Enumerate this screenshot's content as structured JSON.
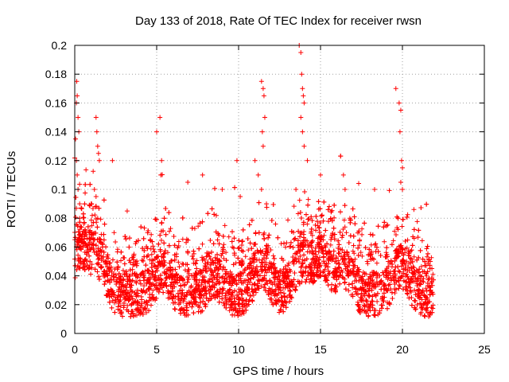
{
  "chart_data": {
    "type": "scatter",
    "title": "Day 133 of 2018, Rate Of TEC Index for receiver rwsn",
    "xlabel": "GPS time / hours",
    "ylabel": "ROTI / TECUs",
    "xlim": [
      0,
      25
    ],
    "ylim": [
      0,
      0.2
    ],
    "x_ticks": [
      0,
      5,
      10,
      15,
      20,
      25
    ],
    "y_ticks": [
      0,
      0.02,
      0.04,
      0.06,
      0.08,
      0.1,
      0.12,
      0.14,
      0.16,
      0.18,
      0.2
    ],
    "x_tick_labels": [
      "0",
      "5",
      "10",
      "15",
      "20",
      "25"
    ],
    "y_tick_labels": [
      "0",
      "0.02",
      "0.04",
      "0.06",
      "0.08",
      "0.1",
      "0.12",
      "0.14",
      "0.16",
      "0.18",
      "0.2"
    ],
    "grid": true,
    "marker": "plus",
    "color": "#ff0000",
    "data_range_x": [
      0,
      21.9
    ],
    "series": [
      {
        "x": [
          0.05,
          0.1,
          0.12,
          0.15,
          0.2,
          0.25,
          0.1,
          0.15,
          0.2,
          0.3,
          0.3,
          0.4,
          0.5,
          0.6,
          0.8,
          1.0,
          1.2,
          1.3,
          1.35,
          1.4,
          1.45,
          1.5,
          1.3,
          1.4,
          2.3,
          2.4,
          3.2,
          5.0,
          5.2,
          5.3,
          5.25,
          6.9,
          7.8,
          9.0,
          9.9,
          10.1,
          11.0,
          11.4,
          11.5,
          11.55,
          11.6,
          11.45,
          11.5,
          11.2,
          11.4,
          11.7,
          13.5,
          13.7,
          13.8,
          13.85,
          13.9,
          13.95,
          14.0,
          13.8,
          13.9,
          14.0,
          14.2,
          15.0,
          16.4,
          16.5,
          18.3,
          19.6,
          19.8,
          19.9,
          19.85,
          19.95,
          20.0,
          19.9,
          20.0,
          21.7,
          21.8
        ],
        "y": [
          0.135,
          0.16,
          0.175,
          0.165,
          0.15,
          0.14,
          0.12,
          0.11,
          0.1,
          0.09,
          0.08,
          0.065,
          0.06,
          0.05,
          0.058,
          0.09,
          0.1,
          0.15,
          0.14,
          0.13,
          0.125,
          0.12,
          0.095,
          0.08,
          0.12,
          0.07,
          0.085,
          0.14,
          0.15,
          0.12,
          0.11,
          0.105,
          0.11,
          0.1,
          0.12,
          0.095,
          0.12,
          0.175,
          0.17,
          0.165,
          0.15,
          0.14,
          0.13,
          0.11,
          0.1,
          0.09,
          0.1,
          0.2,
          0.195,
          0.18,
          0.17,
          0.165,
          0.16,
          0.15,
          0.14,
          0.13,
          0.12,
          0.11,
          0.11,
          0.1,
          0.1,
          0.17,
          0.16,
          0.155,
          0.14,
          0.12,
          0.115,
          0.105,
          0.1,
          0.05,
          0.045
        ]
      }
    ]
  }
}
